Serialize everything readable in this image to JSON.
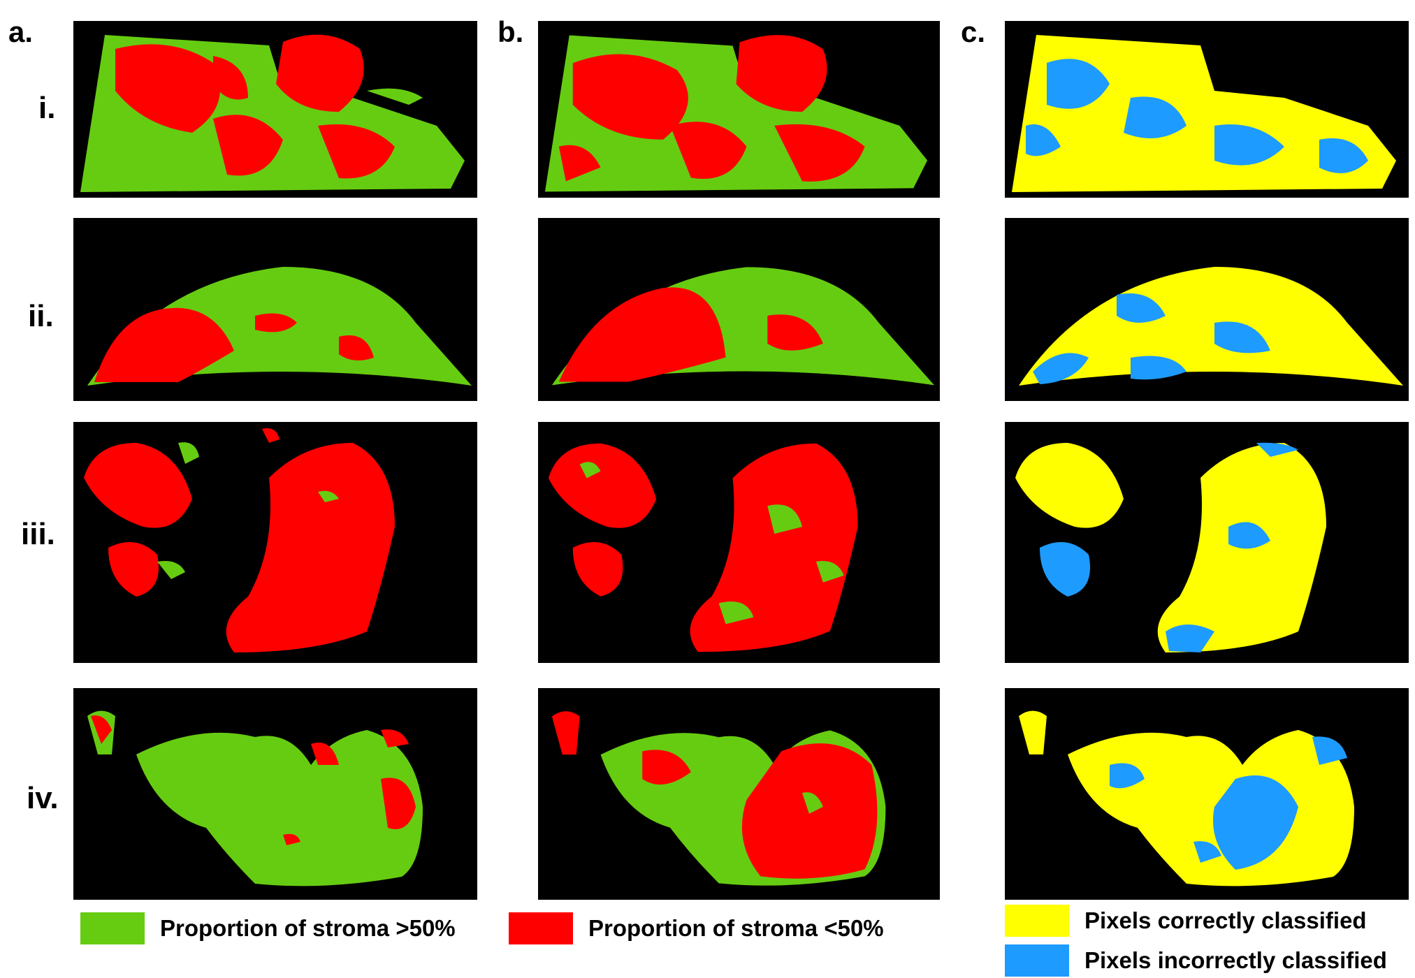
{
  "column_labels": [
    "a.",
    "b.",
    "c."
  ],
  "row_labels": [
    "i.",
    "ii.",
    "iii.",
    "iv."
  ],
  "legends": [
    {
      "label": "Proportion of stroma >50%",
      "color": "#66cc11"
    },
    {
      "label": "Proportion of stroma <50%",
      "color": "#ff0000"
    },
    {
      "label": "Pixels correctly classified",
      "color": "#ffff00"
    },
    {
      "label": "Pixels incorrectly classified",
      "color": "#1e9bff"
    }
  ],
  "colors": {
    "stroma_high": "#66cc11",
    "stroma_low": "#ff0000",
    "correct": "#ffff00",
    "incorrect": "#1e9bff",
    "background": "#000000"
  }
}
